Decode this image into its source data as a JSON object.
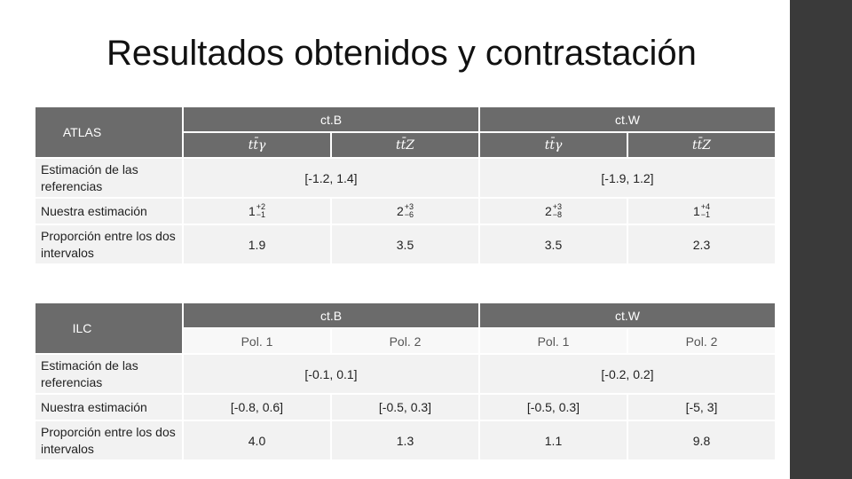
{
  "title": "Resultados obtenidos y contrastación",
  "tables": [
    {
      "corner": "ATLAS",
      "groups": [
        "ct.B",
        "ct.W"
      ],
      "subheaders": [
        "tt̄γ",
        "tt̄Z",
        "tt̄γ",
        "tt̄Z"
      ],
      "rows": [
        {
          "label": "Estimación de las referencias",
          "cells": [
            "[-1.2, 1.4]",
            "[-1.9, 1.2]"
          ]
        },
        {
          "label": "Nuestra estimación",
          "cells": [
            {
              "base": "1",
              "sup": "+2",
              "sub": "−1"
            },
            {
              "base": "2",
              "sup": "+3",
              "sub": "−6"
            },
            {
              "base": "2",
              "sup": "+3",
              "sub": "−8"
            },
            {
              "base": "1",
              "sup": "+4",
              "sub": "−1"
            }
          ]
        },
        {
          "label": "Proporción entre los dos intervalos",
          "cells": [
            "1.9",
            "3.5",
            "3.5",
            "2.3"
          ]
        }
      ]
    },
    {
      "corner": "ILC",
      "groups": [
        "ct.B",
        "ct.W"
      ],
      "subheaders": [
        "Pol. 1",
        "Pol. 2",
        "Pol. 1",
        "Pol. 2"
      ],
      "rows": [
        {
          "label": "Estimación de las referencias",
          "cells": [
            "[-0.1, 0.1]",
            "[-0.2, 0.2]"
          ]
        },
        {
          "label": "Nuestra estimación",
          "cells": [
            "[-0.8, 0.6]",
            "[-0.5, 0.3]",
            "[-0.5, 0.3]",
            "[-5, 3]"
          ]
        },
        {
          "label": "Proporción entre los dos intervalos",
          "cells": [
            "4.0",
            "1.3",
            "1.1",
            "9.8"
          ]
        }
      ]
    }
  ]
}
